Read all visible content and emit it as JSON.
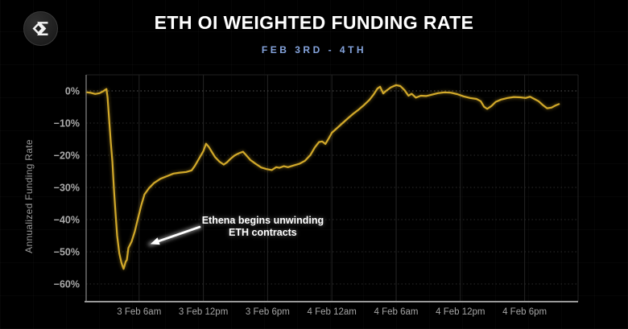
{
  "logo": {
    "icon": "velo-sigma-logo",
    "shape": "dark-circle-with-white-diamond-sigma"
  },
  "header": {
    "title": "ETH OI WEIGHTED FUNDING RATE",
    "subtitle": "FEB 3RD - 4TH",
    "subtitle_color": "#84a3dc",
    "title_color": "#ffffff"
  },
  "chart_data": {
    "type": "line",
    "title": "ETH OI WEIGHTED FUNDING RATE",
    "subtitle": "FEB 3RD - 4TH",
    "xlabel": "",
    "ylabel": "Annualized Funding Rate",
    "x_unit": "hours since 3 Feb 12am",
    "xlim": [
      1.1,
      47
    ],
    "ylim": [
      -65.5,
      5
    ],
    "grid": true,
    "legend_position": "none",
    "background_color": "#000000",
    "line_color": "#d2a92a",
    "axis_label_color": "#a8a8a8",
    "ytick_values": [
      0,
      -10,
      -20,
      -30,
      -40,
      -50,
      -60
    ],
    "ytick_labels": [
      "0%",
      "−10%",
      "−20%",
      "−30%",
      "−40%",
      "−50%",
      "−60%"
    ],
    "xtick_values": [
      6,
      12,
      18,
      24,
      30,
      36,
      42
    ],
    "xtick_labels": [
      "3 Feb 6am",
      "3 Feb 12pm",
      "3 Feb 6pm",
      "4 Feb 12am",
      "4 Feb 6am",
      "4 Feb 12pm",
      "4 Feb 6pm"
    ],
    "series": [
      {
        "name": "ETH OI weighted funding rate (annualized %)",
        "points": [
          [
            1.15,
            -0.45
          ],
          [
            1.5,
            -0.6
          ],
          [
            1.9,
            -0.95
          ],
          [
            2.3,
            -0.7
          ],
          [
            2.6,
            -0.2
          ],
          [
            2.95,
            0.6
          ],
          [
            3.05,
            -2
          ],
          [
            3.2,
            -9
          ],
          [
            3.35,
            -16
          ],
          [
            3.5,
            -22
          ],
          [
            3.65,
            -30.5
          ],
          [
            3.8,
            -38
          ],
          [
            3.95,
            -45
          ],
          [
            4.15,
            -50.5
          ],
          [
            4.35,
            -53.5
          ],
          [
            4.55,
            -55.3
          ],
          [
            4.75,
            -53
          ],
          [
            4.85,
            -52.6
          ],
          [
            5.0,
            -48.8
          ],
          [
            5.3,
            -46.8
          ],
          [
            5.6,
            -43.6
          ],
          [
            5.9,
            -39.5
          ],
          [
            6.2,
            -35.5
          ],
          [
            6.5,
            -32.2
          ],
          [
            6.9,
            -30.3
          ],
          [
            7.4,
            -28.6
          ],
          [
            8.0,
            -27.3
          ],
          [
            8.6,
            -26.5
          ],
          [
            9.2,
            -25.7
          ],
          [
            9.8,
            -25.4
          ],
          [
            10.4,
            -25.2
          ],
          [
            10.9,
            -24.7
          ],
          [
            11.2,
            -23.3
          ],
          [
            11.6,
            -21
          ],
          [
            12.0,
            -18.7
          ],
          [
            12.25,
            -16.4
          ],
          [
            12.5,
            -17.4
          ],
          [
            12.8,
            -19
          ],
          [
            13.1,
            -20.6
          ],
          [
            13.5,
            -22
          ],
          [
            13.9,
            -22.9
          ],
          [
            14.2,
            -22.2
          ],
          [
            14.5,
            -21.2
          ],
          [
            14.9,
            -20.1
          ],
          [
            15.3,
            -19.4
          ],
          [
            15.7,
            -18.9
          ],
          [
            16.0,
            -20
          ],
          [
            16.4,
            -21.5
          ],
          [
            16.9,
            -22.7
          ],
          [
            17.4,
            -23.8
          ],
          [
            17.9,
            -24.3
          ],
          [
            18.4,
            -24.6
          ],
          [
            18.8,
            -23.7
          ],
          [
            19.1,
            -23.9
          ],
          [
            19.5,
            -23.4
          ],
          [
            19.9,
            -23.7
          ],
          [
            20.4,
            -23.2
          ],
          [
            21.0,
            -22.6
          ],
          [
            21.5,
            -21.7
          ],
          [
            22.0,
            -19.9
          ],
          [
            22.4,
            -17.6
          ],
          [
            22.8,
            -15.9
          ],
          [
            23.1,
            -15.7
          ],
          [
            23.4,
            -16.5
          ],
          [
            23.7,
            -14.8
          ],
          [
            24.0,
            -13
          ],
          [
            24.5,
            -11.5
          ],
          [
            25.0,
            -10
          ],
          [
            25.5,
            -8.5
          ],
          [
            26.0,
            -7.1
          ],
          [
            26.5,
            -5.8
          ],
          [
            27.0,
            -4.4
          ],
          [
            27.5,
            -2.8
          ],
          [
            27.9,
            -1.1
          ],
          [
            28.25,
            0.7
          ],
          [
            28.5,
            1.3
          ],
          [
            28.8,
            -0.8
          ],
          [
            29.1,
            0.1
          ],
          [
            29.5,
            1.1
          ],
          [
            30.0,
            1.8
          ],
          [
            30.4,
            1.5
          ],
          [
            30.8,
            0.2
          ],
          [
            31.15,
            -1.5
          ],
          [
            31.45,
            -0.9
          ],
          [
            31.85,
            -2.1
          ],
          [
            32.3,
            -1.5
          ],
          [
            32.8,
            -1.6
          ],
          [
            33.3,
            -1.2
          ],
          [
            33.9,
            -0.7
          ],
          [
            34.5,
            -0.45
          ],
          [
            35.1,
            -0.55
          ],
          [
            35.7,
            -1
          ],
          [
            36.3,
            -1.7
          ],
          [
            36.9,
            -2.2
          ],
          [
            37.5,
            -2.5
          ],
          [
            37.9,
            -3.2
          ],
          [
            38.2,
            -4.9
          ],
          [
            38.5,
            -5.6
          ],
          [
            38.9,
            -4.7
          ],
          [
            39.3,
            -3.4
          ],
          [
            39.8,
            -2.7
          ],
          [
            40.4,
            -2.2
          ],
          [
            41.0,
            -1.9
          ],
          [
            41.6,
            -2.0
          ],
          [
            42.1,
            -2.2
          ],
          [
            42.5,
            -1.8
          ],
          [
            42.9,
            -2.5
          ],
          [
            43.3,
            -3.2
          ],
          [
            43.7,
            -4.4
          ],
          [
            44.1,
            -5.4
          ],
          [
            44.5,
            -5.2
          ],
          [
            44.9,
            -4.5
          ],
          [
            45.2,
            -4.1
          ]
        ]
      }
    ],
    "annotation": {
      "lines": [
        "Ethena begins unwinding",
        "ETH contracts"
      ],
      "text_pos": [
        17.55,
        -41.3
      ],
      "arrow_tail": [
        11.65,
        -42.3
      ],
      "arrow_tip": [
        7.05,
        -47.6
      ],
      "color": "#ffffff"
    }
  }
}
